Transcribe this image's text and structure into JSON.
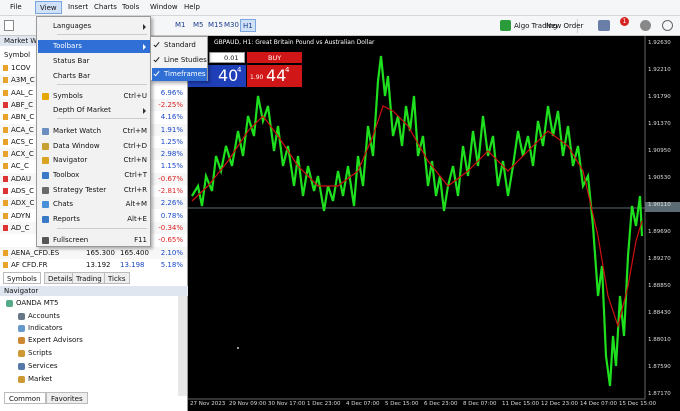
{
  "menu_bar": [
    "File",
    "View",
    "Insert",
    "Charts",
    "Tools",
    "Window",
    "Help"
  ],
  "toolbar": {
    "timeframes": [
      "M1",
      "M5",
      "M15",
      "M30",
      "H1"
    ],
    "algo_trading": "Algo Trading",
    "new_order": "New Order",
    "badge": "1"
  },
  "view_menu": [
    {
      "label": "Languages"
    },
    {
      "label": "Toolbars"
    },
    {
      "label": "Status Bar"
    },
    {
      "label": "Charts Bar"
    },
    {
      "label": "Symbols",
      "shortcut": "Ctrl+U"
    },
    {
      "label": "Depth Of Market"
    },
    {
      "label": "Market Watch",
      "shortcut": "Ctrl+M"
    },
    {
      "label": "Data Window",
      "shortcut": "Ctrl+D"
    },
    {
      "label": "Navigator",
      "shortcut": "Ctrl+N"
    },
    {
      "label": "Toolbox",
      "shortcut": "Ctrl+T"
    },
    {
      "label": "Strategy Tester",
      "shortcut": "Ctrl+R"
    },
    {
      "label": "Chats",
      "shortcut": "Alt+M"
    },
    {
      "label": "Reports",
      "shortcut": "Alt+E"
    },
    {
      "label": "Fullscreen",
      "shortcut": "F11"
    }
  ],
  "toolbars_submenu": [
    "Standard",
    "Line Studies",
    "Timeframes"
  ],
  "market_watch": {
    "title": "Market Wat",
    "column": "Symbol",
    "rows": [
      {
        "symbol": "1COV"
      },
      {
        "symbol": "A3M_C"
      },
      {
        "symbol": "AAL_C",
        "change": "6.96%"
      },
      {
        "symbol": "ABF_C",
        "change": "-2.25%"
      },
      {
        "symbol": "ABN_C",
        "change": "4.16%"
      },
      {
        "symbol": "ACA_C",
        "change": "1.91%"
      },
      {
        "symbol": "ACS_C",
        "change": "1.25%"
      },
      {
        "symbol": "ACX_C",
        "change": "2.98%"
      },
      {
        "symbol": "AC_C",
        "change": "1.15%"
      },
      {
        "symbol": "ADAU",
        "change": "-0.67%"
      },
      {
        "symbol": "ADS_C",
        "change": "-2.81%"
      },
      {
        "symbol": "ADX_C",
        "change": "2.26%"
      },
      {
        "symbol": "ADYN",
        "change": "0.78%"
      },
      {
        "symbol": "AD_C",
        "change": "-0.34%"
      },
      {
        "change": "-0.65%"
      },
      {
        "symbol": "AENA_CFD.ES",
        "bid": "165.300",
        "ask": "165.400",
        "change": "2.10%"
      },
      {
        "symbol": "AF CFD.FR",
        "bid": "13.192",
        "ask": "13.198",
        "change": "5.18%"
      }
    ],
    "tabs": [
      "Symbols",
      "Details",
      "Trading",
      "Ticks"
    ]
  },
  "navigator": {
    "title": "Navigator",
    "items": [
      "OANDA MT5",
      "Accounts",
      "Indicators",
      "Expert Advisors",
      "Scripts",
      "Services",
      "Market"
    ],
    "tabs": [
      "Common",
      "Favorites"
    ]
  },
  "chart": {
    "title": "GBPAUD, H1: Great Britain Pound vs Australian Dollar",
    "lot": "0.01",
    "sell_price": "40",
    "sell_sup": "4",
    "buy_small": "1.90",
    "buy_price": "44",
    "buy_sup": "4",
    "buy_label": "BUY",
    "price_axis": [
      "1.92630",
      "1.92210",
      "1.91790",
      "1.91370",
      "1.90950",
      "1.90530",
      "1.90110",
      "1.89690",
      "1.89270",
      "1.88850",
      "1.88430",
      "1.88010",
      "1.87590",
      "1.87170"
    ],
    "time_axis": [
      "27 Nov 2023",
      "29 Nov 09:00",
      "30 Nov 17:00",
      "1 Dec 23:00",
      "4 Dec 07:00",
      "5 Dec 15:00",
      "6 Dec 23:00",
      "8 Dec 07:00",
      "11 Dec 15:00",
      "12 Dec 23:00",
      "14 Dec 07:00",
      "15 Dec 15:00"
    ]
  }
}
